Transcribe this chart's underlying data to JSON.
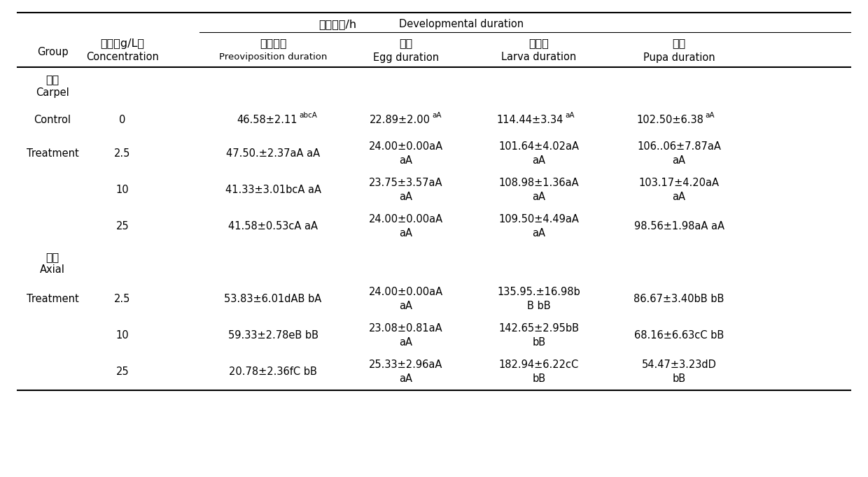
{
  "top_header_zh": "发育历期/h",
  "top_header_en": "Developmental duration",
  "col0_header": "Group",
  "col1_zh": "浓度（g/L）",
  "col1_en": "Concentration",
  "col2_zh": "产卵前期",
  "col2_en": "Preoviposition duration",
  "col3_zh": "卵期",
  "col3_en": "Egg duration",
  "col4_zh": "幼虫期",
  "col4_en": "Larva duration",
  "col5_zh": "蛹期",
  "col5_en": "Pupa duration",
  "rows": [
    {
      "group": "果瓣",
      "group_en": "Carpel",
      "conc": "",
      "preov": "",
      "egg": "",
      "larva": "",
      "pupa": "",
      "type": "section"
    },
    {
      "group": "Control",
      "group_en": "",
      "conc": "0",
      "preov": "46.58±2.11",
      "preov_sup": "abcA",
      "egg": "22.89±2.00",
      "egg_sup": "aA",
      "larva": "114.44±3.34",
      "larva_sup": "aA",
      "pupa": "102.50±6.38",
      "pupa_sup": "aA",
      "type": "data_single"
    },
    {
      "group": "Treatment",
      "group_en": "",
      "conc": "2.5",
      "preov": "47.50.±2.37aA aA",
      "preov_sup": "",
      "egg": "24.00±0.00aA",
      "egg2": "aA",
      "larva": "101.64±4.02aA",
      "larva2": "aA",
      "pupa": "106..06±7.87aA",
      "pupa2": "aA",
      "type": "data_multi"
    },
    {
      "group": "",
      "group_en": "",
      "conc": "10",
      "preov": "41.33±3.01bcA aA",
      "preov_sup": "",
      "egg": "23.75±3.57aA",
      "egg2": "aA",
      "larva": "108.98±1.36aA",
      "larva2": "aA",
      "pupa": "103.17±4.20aA",
      "pupa2": "aA",
      "type": "data_multi"
    },
    {
      "group": "",
      "group_en": "",
      "conc": "25",
      "preov": "41.58±0.53cA aA",
      "preov_sup": "",
      "egg": "24.00±0.00aA",
      "egg2": "aA",
      "larva": "109.50±4.49aA",
      "larva2": "aA",
      "pupa": "98.56±1.98aA aA",
      "pupa2": "",
      "type": "data_multi"
    },
    {
      "group": "中轴",
      "group_en": "Axial",
      "conc": "",
      "preov": "",
      "egg": "",
      "larva": "",
      "pupa": "",
      "type": "section"
    },
    {
      "group": "Treatment",
      "group_en": "",
      "conc": "2.5",
      "preov": "53.83±6.01dAB bA",
      "preov_sup": "",
      "egg": "24.00±0.00aA",
      "egg2": "aA",
      "larva": "135.95.±16.98b",
      "larva2": "B bB",
      "pupa": "86.67±3.40bB bB",
      "pupa2": "",
      "type": "data_multi"
    },
    {
      "group": "",
      "group_en": "",
      "conc": "10",
      "preov": "59.33±2.78eB bB",
      "preov_sup": "",
      "egg": "23.08±0.81aA",
      "egg2": "aA",
      "larva": "142.65±2.95bB",
      "larva2": "bB",
      "pupa": "68.16±6.63cC bB",
      "pupa2": "",
      "type": "data_multi"
    },
    {
      "group": "",
      "group_en": "",
      "conc": "25",
      "preov": "20.78±2.36fC bB",
      "preov_sup": "",
      "egg": "25.33±2.96aA",
      "egg2": "aA",
      "larva": "182.94±6.22cC",
      "larva2": "bB",
      "pupa": "54.47±3.23dD",
      "pupa2": "bB",
      "type": "data_multi"
    }
  ],
  "line_color": "#000000",
  "text_color": "#000000",
  "bg_color": "#ffffff"
}
